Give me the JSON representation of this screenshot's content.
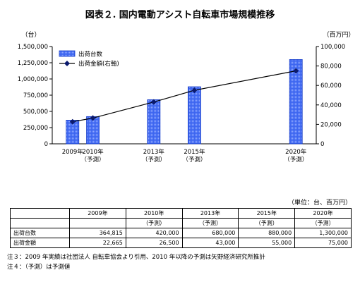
{
  "title": "図表２. 国内電動アシスト自転車市場規模推移",
  "chart_data": {
    "type": "bar+line",
    "left_axis_unit": "（台）",
    "right_axis_unit": "（百万円）",
    "left_ticks": [
      "0",
      "250,000",
      "500,000",
      "750,000",
      "1,000,000",
      "1,250,000",
      "1,500,000"
    ],
    "right_ticks": [
      "0",
      "20,000",
      "40,000",
      "60,000",
      "80,000",
      "100,000"
    ],
    "ylim_left": [
      0,
      1500000
    ],
    "ylim_right": [
      0,
      100000
    ],
    "x": [
      2009,
      2010,
      2013,
      2015,
      2020
    ],
    "categories": [
      {
        "year": "2009年",
        "sub": ""
      },
      {
        "year": "2010年",
        "sub": "（予測）"
      },
      {
        "year": "2013年",
        "sub": "（予測）"
      },
      {
        "year": "2015年",
        "sub": "（予測）"
      },
      {
        "year": "2020年",
        "sub": "（予測）"
      }
    ],
    "series": [
      {
        "name": "出荷台数",
        "type": "bar",
        "axis": "left",
        "values": [
          364815,
          420000,
          680000,
          880000,
          1300000
        ]
      },
      {
        "name": "出荷金額(右軸)",
        "type": "line",
        "axis": "right",
        "values": [
          22665,
          26500,
          43000,
          55000,
          75000
        ]
      }
    ],
    "legend_position": "top-left",
    "grid": false,
    "colors": {
      "bar": "#3d66f0",
      "bar_edge": "#1a3fc8",
      "line": "#000000",
      "marker": "#0b1a6e"
    }
  },
  "table": {
    "unit_note": "（単位：台、百万円）",
    "header": [
      {
        "year": "2009年",
        "sub": ""
      },
      {
        "year": "2010年",
        "sub": "（予測）"
      },
      {
        "year": "2013年",
        "sub": "（予測）"
      },
      {
        "year": "2015年",
        "sub": "（予測）"
      },
      {
        "year": "2020年",
        "sub": "（予測）"
      }
    ],
    "rows": [
      {
        "label": "出荷台数",
        "values": [
          "364,815",
          "420,000",
          "680,000",
          "880,000",
          "1,300,000"
        ]
      },
      {
        "label": "出荷金額",
        "values": [
          "22,665",
          "26,500",
          "43,000",
          "55,000",
          "75,000"
        ]
      }
    ]
  },
  "notes": {
    "note3": "注３：2009 年実績は社団法人 自転車協会より引用、2010 年以降の予測は矢野経済研究所推計",
    "note4": "注４：（予測）は予測値"
  }
}
